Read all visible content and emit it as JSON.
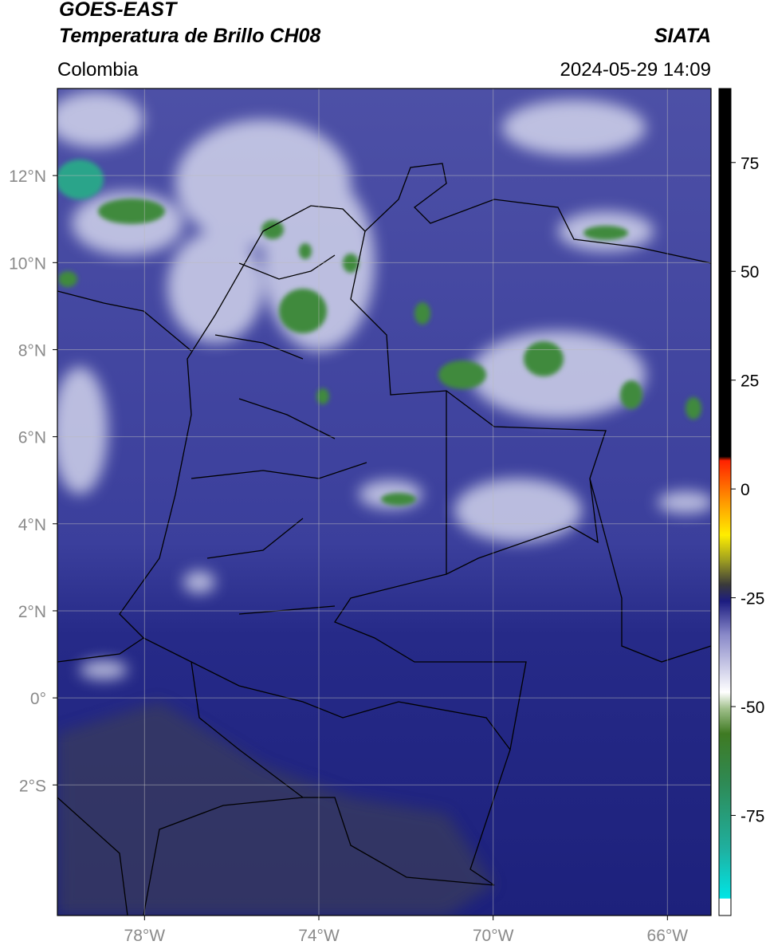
{
  "chart_data": {
    "type": "map",
    "title": "GOES-EAST",
    "subtitle": "Temperatura de Brillo CH08",
    "source": "SIATA",
    "region": "Colombia",
    "datetime": "2024-05-29 14:09",
    "xlim": [
      -80,
      -65
    ],
    "ylim": [
      -5,
      14
    ],
    "xticks": [
      {
        "value": -78,
        "label": "78°W"
      },
      {
        "value": -74,
        "label": "74°W"
      },
      {
        "value": -70,
        "label": "70°W"
      },
      {
        "value": -66,
        "label": "66°W"
      }
    ],
    "yticks": [
      {
        "value": 12,
        "label": "12°N"
      },
      {
        "value": 10,
        "label": "10°N"
      },
      {
        "value": 8,
        "label": "8°N"
      },
      {
        "value": 6,
        "label": "6°N"
      },
      {
        "value": 4,
        "label": "4°N"
      },
      {
        "value": 2,
        "label": "2°N"
      },
      {
        "value": 0,
        "label": "0°"
      },
      {
        "value": -2,
        "label": "2°S"
      }
    ],
    "grid": true,
    "colorbar": {
      "lim": [
        -98,
        92
      ],
      "ticks": [
        75,
        50,
        25,
        0,
        -25,
        -50,
        -75
      ]
    }
  }
}
